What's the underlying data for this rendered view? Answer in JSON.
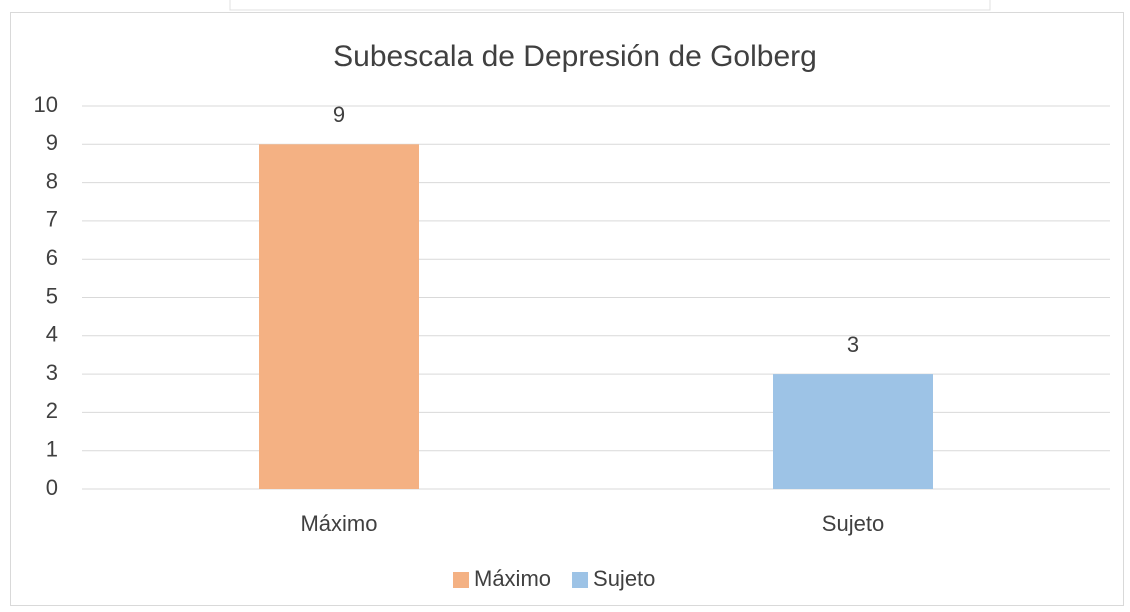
{
  "chart_data": {
    "type": "bar",
    "title": "Subescala de Depresión de Golberg",
    "categories": [
      "Máximo",
      "Sujeto"
    ],
    "values": [
      9,
      3
    ],
    "colors": [
      "#f4b183",
      "#9dc3e6"
    ],
    "ylim": [
      0,
      10
    ],
    "yticks": [
      0,
      1,
      2,
      3,
      4,
      5,
      6,
      7,
      8,
      9,
      10
    ],
    "grid": true,
    "legend": "bottom"
  }
}
